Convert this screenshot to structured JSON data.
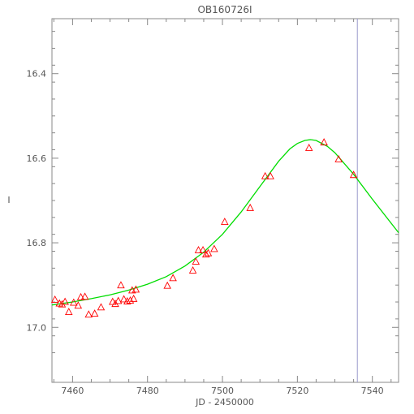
{
  "chart_data": {
    "type": "scatter",
    "title": "OB160726I",
    "xlabel": "JD - 2450000",
    "ylabel": "I",
    "xlim": [
      7454.5,
      7547
    ],
    "ylim": [
      17.13,
      16.27
    ],
    "y_inverted": true,
    "xticks": [
      7460,
      7480,
      7500,
      7520,
      7540
    ],
    "xtick_labels": [
      "7460",
      "7480",
      "7500",
      "7520",
      "7540"
    ],
    "yticks": [
      16.4,
      16.6,
      16.8,
      17.0
    ],
    "ytick_labels": [
      "16.4",
      "16.6",
      "16.8",
      "17.0"
    ],
    "vertical_marker_x": 7536,
    "colors": {
      "points": "#ff0000",
      "model": "#00dd00",
      "marker": "#9999cc",
      "frame": "#888888"
    },
    "series": [
      {
        "kind": "points",
        "marker": "open-triangle",
        "x": [
          7455.3,
          7456.5,
          7457.2,
          7458.0,
          7459.0,
          7460.3,
          7461.5,
          7462.2,
          7463.3,
          7464.3,
          7465.9,
          7467.6,
          7470.7,
          7471.4,
          7472.2,
          7472.9,
          7473.7,
          7474.6,
          7475.4,
          7475.9,
          7476.3,
          7476.9,
          7485.3,
          7486.8,
          7492.1,
          7492.9,
          7493.6,
          7494.8,
          7495.6,
          7496.2,
          7497.8,
          7500.6,
          7507.4,
          7511.4,
          7512.8,
          7523.1,
          7527.1,
          7531.0,
          7535.0
        ],
        "y": [
          16.935,
          16.944,
          16.946,
          16.94,
          16.964,
          16.942,
          16.949,
          16.929,
          16.928,
          16.97,
          16.968,
          16.953,
          16.94,
          16.945,
          16.938,
          16.901,
          16.934,
          16.939,
          16.937,
          16.913,
          16.933,
          16.911,
          16.902,
          16.884,
          16.866,
          16.845,
          16.818,
          16.818,
          16.828,
          16.825,
          16.815,
          16.751,
          16.718,
          16.643,
          16.643,
          16.576,
          16.563,
          16.603,
          16.64
        ]
      },
      {
        "kind": "model",
        "x": [
          7454.5,
          7460,
          7465,
          7470,
          7475,
          7480,
          7485,
          7490,
          7495,
          7500,
          7505,
          7510,
          7515,
          7518,
          7520,
          7522,
          7523.5,
          7525,
          7528,
          7530,
          7535,
          7540,
          7547
        ],
        "y": [
          16.947,
          16.94,
          16.932,
          16.923,
          16.912,
          16.898,
          16.88,
          16.855,
          16.822,
          16.78,
          16.727,
          16.667,
          16.607,
          16.578,
          16.565,
          16.558,
          16.556,
          16.558,
          16.572,
          16.587,
          16.638,
          16.697,
          16.776
        ]
      }
    ]
  }
}
